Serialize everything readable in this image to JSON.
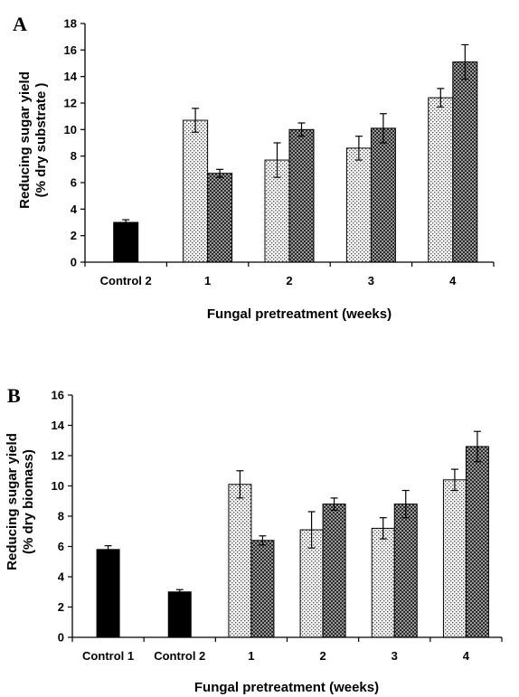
{
  "chart_data": [
    {
      "type": "bar",
      "panel_label": "A",
      "xlabel": "Fungal pretreatment (weeks)",
      "ylabel_line1": "Reducing sugar yield",
      "ylabel_line2": "(% dry substrate )",
      "ylim": [
        0,
        18
      ],
      "yticks": [
        0,
        2,
        4,
        6,
        8,
        10,
        12,
        14,
        16,
        18
      ],
      "categories": [
        "Control 2",
        "1",
        "2",
        "3",
        "4"
      ],
      "series": [
        {
          "style": "solid",
          "values": [
            3.0,
            null,
            null,
            null,
            null
          ],
          "errors": [
            0.2,
            null,
            null,
            null,
            null
          ]
        },
        {
          "style": "light-dotted",
          "values": [
            null,
            10.7,
            7.7,
            8.6,
            12.4
          ],
          "errors": [
            null,
            0.9,
            1.3,
            0.9,
            0.7
          ]
        },
        {
          "style": "dark-checkered",
          "values": [
            null,
            6.7,
            10.0,
            10.1,
            15.1
          ],
          "errors": [
            null,
            0.3,
            0.5,
            1.1,
            1.3
          ]
        }
      ],
      "colors": {
        "solid": "#000000",
        "light_dotted": "#d8d8d8",
        "dark_checkered": "#444444"
      }
    },
    {
      "type": "bar",
      "panel_label": "B",
      "xlabel": "Fungal pretreatment (weeks)",
      "ylabel_line1": "Reducing sugar yield",
      "ylabel_line2": "(% dry biomass)",
      "ylim": [
        0,
        16
      ],
      "yticks": [
        0,
        2,
        4,
        6,
        8,
        10,
        12,
        14,
        16
      ],
      "categories": [
        "Control 1",
        "Control 2",
        "1",
        "2",
        "3",
        "4"
      ],
      "series": [
        {
          "style": "solid",
          "values": [
            5.8,
            3.0,
            null,
            null,
            null,
            null
          ],
          "errors": [
            0.25,
            0.15,
            null,
            null,
            null,
            null
          ]
        },
        {
          "style": "light-dotted",
          "values": [
            null,
            null,
            10.1,
            7.1,
            7.2,
            10.4
          ],
          "errors": [
            null,
            null,
            0.9,
            1.2,
            0.7,
            0.7
          ]
        },
        {
          "style": "dark-checkered",
          "values": [
            null,
            null,
            6.4,
            8.8,
            8.8,
            12.6
          ],
          "errors": [
            null,
            null,
            0.3,
            0.4,
            0.9,
            1.0
          ]
        }
      ],
      "colors": {
        "solid": "#000000",
        "light_dotted": "#d8d8d8",
        "dark_checkered": "#444444"
      }
    }
  ]
}
